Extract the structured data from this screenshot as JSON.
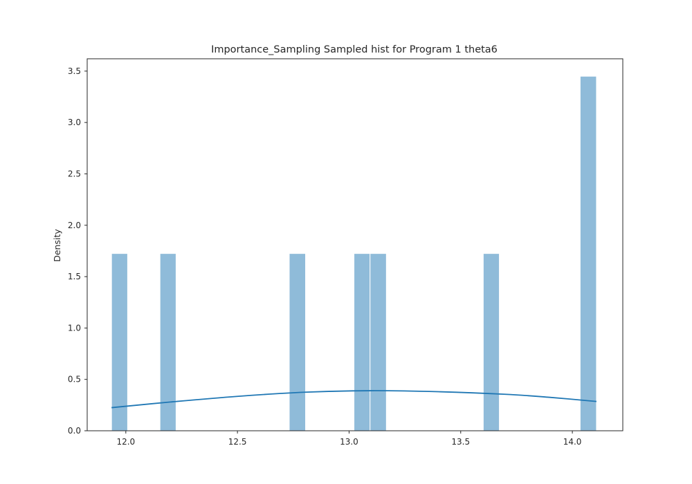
{
  "chart_data": {
    "type": "bar",
    "title": "Importance_Sampling Sampled hist for Program 1 theta6",
    "xlabel": "",
    "ylabel": "Density",
    "xlim": [
      11.827,
      14.226
    ],
    "ylim": [
      0.0,
      3.62
    ],
    "x_ticks": [
      12.0,
      12.5,
      13.0,
      13.5,
      14.0
    ],
    "x_tick_labels": [
      "12.0",
      "12.5",
      "13.0",
      "13.5",
      "14.0"
    ],
    "y_ticks": [
      0.0,
      0.5,
      1.0,
      1.5,
      2.0,
      2.5,
      3.0,
      3.5
    ],
    "y_tick_labels": [
      "0.0",
      "0.5",
      "1.0",
      "1.5",
      "2.0",
      "2.5",
      "3.0",
      "3.5"
    ],
    "grid": false,
    "bin_width": 0.0724,
    "bars": [
      {
        "x0": 11.936,
        "x1": 12.008,
        "value": 1.725
      },
      {
        "x0": 12.153,
        "x1": 12.225,
        "value": 1.725
      },
      {
        "x0": 12.732,
        "x1": 12.805,
        "value": 1.725
      },
      {
        "x0": 13.022,
        "x1": 13.094,
        "value": 1.725
      },
      {
        "x0": 13.094,
        "x1": 13.167,
        "value": 1.725
      },
      {
        "x0": 13.601,
        "x1": 13.673,
        "value": 1.725
      },
      {
        "x0": 14.035,
        "x1": 14.108,
        "value": 3.45
      }
    ],
    "kde": {
      "x": [
        11.936,
        12.2,
        12.5,
        12.8,
        13.1,
        13.4,
        13.7,
        13.9,
        14.108
      ],
      "y": [
        0.225,
        0.28,
        0.335,
        0.375,
        0.39,
        0.38,
        0.355,
        0.325,
        0.285
      ]
    },
    "colors": {
      "bar_fill": "#8fbbd9",
      "bar_edge": "#ffffff",
      "kde_line": "#1f77b4",
      "axes": "#262626"
    }
  }
}
